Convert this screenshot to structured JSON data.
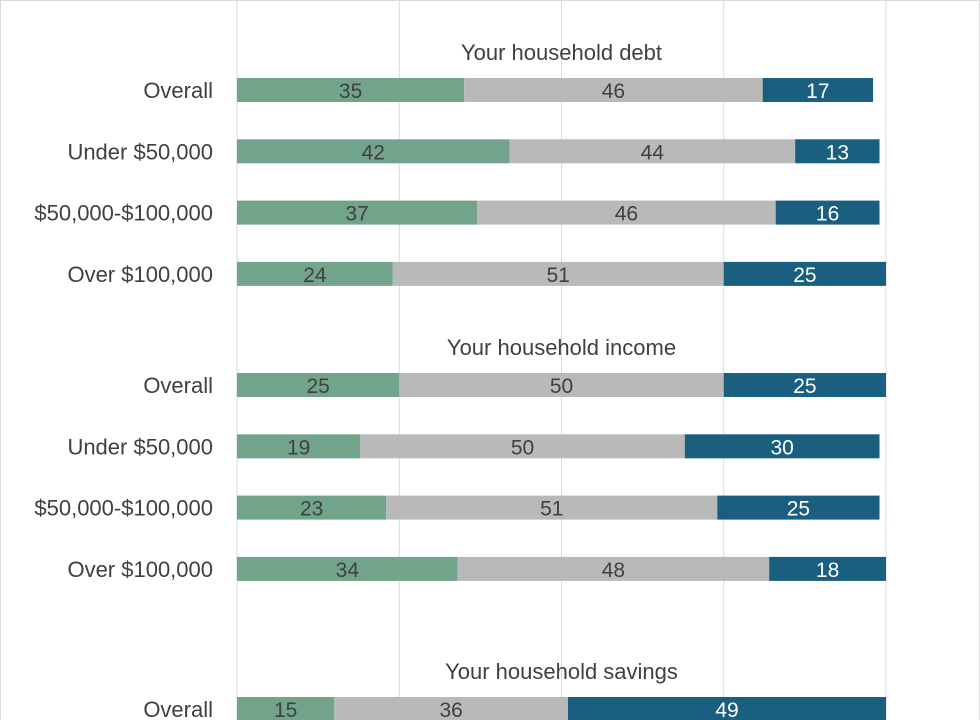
{
  "chart_data": {
    "type": "bar",
    "orientation": "horizontal",
    "stacked": true,
    "grid": true,
    "xlim": [
      0,
      100
    ],
    "colors": [
      "#72a48b",
      "#b9b9b9",
      "#1a5e80"
    ],
    "label_colors": [
      "#404040",
      "#404040",
      "#ffffff"
    ],
    "sections": [
      {
        "title": "Your household debt",
        "categories": [
          "Overall",
          "Under $50,000",
          "$50,000-$100,000",
          "Over $100,000"
        ],
        "values": [
          [
            35,
            46,
            17
          ],
          [
            42,
            44,
            13
          ],
          [
            37,
            46,
            16
          ],
          [
            24,
            51,
            25
          ]
        ]
      },
      {
        "title": "Your household income",
        "categories": [
          "Overall",
          "Under $50,000",
          "$50,000-$100,000",
          "Over $100,000"
        ],
        "values": [
          [
            25,
            50,
            25
          ],
          [
            19,
            50,
            30
          ],
          [
            23,
            51,
            25
          ],
          [
            34,
            48,
            18
          ]
        ]
      },
      {
        "title": "Your household savings",
        "categories": [
          "Overall"
        ],
        "values": [
          [
            15,
            36,
            49
          ]
        ]
      }
    ]
  }
}
